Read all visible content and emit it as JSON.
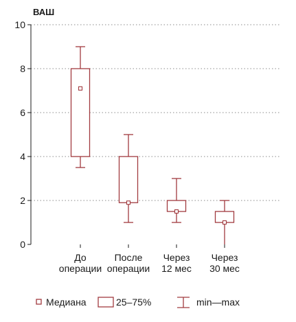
{
  "chart_data": {
    "type": "box",
    "ylabel": "ВАШ",
    "ylim": [
      0,
      10
    ],
    "yticks": [
      "0",
      "2",
      "4",
      "6",
      "8",
      "10"
    ],
    "grid": "horizontal-dotted",
    "color": "#a13a3f",
    "categories": [
      [
        "До",
        "операции"
      ],
      [
        "После",
        "операции"
      ],
      [
        "Через",
        "12 мес"
      ],
      [
        "Через",
        "30 мес"
      ]
    ],
    "boxes": [
      {
        "min": 3.5,
        "q1": 4.0,
        "median": 7.1,
        "q3": 8.0,
        "max": 9.0
      },
      {
        "min": 1.0,
        "q1": 1.9,
        "median": 1.9,
        "q3": 4.0,
        "max": 5.0
      },
      {
        "min": 1.0,
        "q1": 1.5,
        "median": 1.5,
        "q3": 2.0,
        "max": 3.0
      },
      {
        "min": 0.0,
        "q1": 1.0,
        "median": 1.0,
        "q3": 1.5,
        "max": 2.0
      }
    ],
    "legend": {
      "placement": "bottom",
      "median": "Медиана",
      "iqr": "25–75%",
      "range": "min—max"
    }
  }
}
